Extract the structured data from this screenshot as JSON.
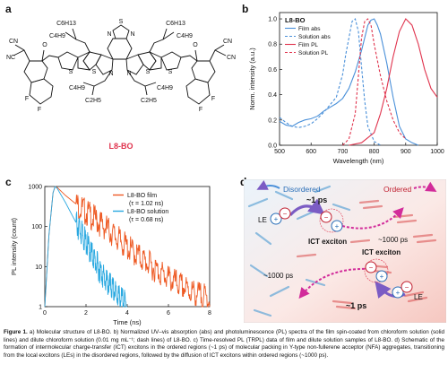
{
  "panels": {
    "a": {
      "label": "a",
      "molecule_name": "L8-BO",
      "atoms": {
        "c6h13": "C6H13",
        "c4h9": "C4H9",
        "c2h5": "C2H5",
        "n": "N",
        "s": "S",
        "o": "O",
        "f": "F",
        "cn": "CN",
        "nc": "NC"
      }
    },
    "b": {
      "label": "b"
    },
    "c": {
      "label": "c"
    },
    "d": {
      "label": "d",
      "texts": {
        "disordered": "Disordered",
        "ordered": "Ordered",
        "ps1_top": "~1 ps",
        "ps1000_top": "~1000 ps",
        "ict_left": "ICT exciton",
        "ict_right": "ICT exciton",
        "ps1000_bottom": "~1000 ps",
        "ps1_bottom": "~1 ps",
        "le_top": "LE",
        "le_bottom": "LE"
      }
    }
  },
  "chart_data": [
    {
      "type": "line",
      "panel": "b",
      "title": "L8-BO",
      "xlabel": "Wavelength (nm)",
      "ylabel": "Norm. intensity (a.u.)",
      "xlim": [
        500,
        1000
      ],
      "ylim": [
        0.0,
        1.05
      ],
      "xticks": [
        "500",
        "600",
        "700",
        "800",
        "900",
        "1000"
      ],
      "yticks": [
        "0.0",
        "0.2",
        "0.4",
        "0.6",
        "0.8",
        "1.0"
      ],
      "legend_position": "top-left",
      "colors": {
        "abs": "#4a90d9",
        "pl": "#e0334d"
      },
      "series": [
        {
          "name": "Film abs",
          "style": "solid",
          "color": "#4a90d9",
          "x": [
            500,
            520,
            540,
            560,
            580,
            600,
            620,
            640,
            660,
            680,
            700,
            720,
            740,
            760,
            780,
            790,
            800,
            810,
            820,
            840,
            860,
            880,
            900,
            920,
            940
          ],
          "y": [
            0.19,
            0.16,
            0.15,
            0.18,
            0.2,
            0.21,
            0.23,
            0.27,
            0.3,
            0.33,
            0.37,
            0.45,
            0.58,
            0.75,
            0.95,
            0.99,
            1.0,
            0.95,
            0.88,
            0.65,
            0.38,
            0.15,
            0.05,
            0.02,
            0.0
          ]
        },
        {
          "name": "Solution abs",
          "style": "dashed",
          "color": "#4a90d9",
          "x": [
            500,
            520,
            540,
            560,
            580,
            600,
            620,
            640,
            660,
            680,
            700,
            710,
            720,
            730,
            740,
            750,
            760,
            770,
            780,
            800,
            820
          ],
          "y": [
            0.22,
            0.18,
            0.15,
            0.14,
            0.15,
            0.17,
            0.21,
            0.26,
            0.32,
            0.38,
            0.56,
            0.72,
            0.85,
            0.98,
            1.0,
            0.9,
            0.62,
            0.35,
            0.15,
            0.03,
            0.0
          ]
        },
        {
          "name": "Film PL",
          "style": "solid",
          "color": "#e0334d",
          "x": [
            720,
            760,
            800,
            820,
            840,
            860,
            880,
            900,
            920,
            940,
            960,
            980,
            1000
          ],
          "y": [
            0.0,
            0.02,
            0.1,
            0.25,
            0.45,
            0.7,
            0.9,
            1.0,
            0.95,
            0.8,
            0.6,
            0.45,
            0.38
          ]
        },
        {
          "name": "Solution PL",
          "style": "dashed",
          "color": "#e0334d",
          "x": [
            700,
            720,
            740,
            750,
            760,
            770,
            780,
            790,
            800,
            820,
            840,
            860,
            880,
            900
          ],
          "y": [
            0.0,
            0.05,
            0.25,
            0.55,
            0.85,
            0.98,
            1.0,
            0.95,
            0.8,
            0.55,
            0.35,
            0.2,
            0.1,
            0.05
          ]
        }
      ]
    },
    {
      "type": "line",
      "panel": "c",
      "xlabel": "Time (ns)",
      "ylabel": "PL intensity (count)",
      "xlim": [
        0,
        8
      ],
      "ylim_log": [
        1,
        1000
      ],
      "yscale": "log",
      "xticks": [
        "0",
        "2",
        "4",
        "6",
        "8"
      ],
      "yticks": [
        "1",
        "10",
        "100",
        "1000"
      ],
      "legend_position": "top-right",
      "series": [
        {
          "name": "L8-BO film",
          "tau_label": "(τ = 1.02 ns)",
          "color": "#ee5a24",
          "x": [
            0.0,
            0.2,
            0.4,
            0.5,
            0.6,
            1.0,
            2.0,
            3.0,
            4.0,
            5.0,
            6.0,
            7.0,
            8.0
          ],
          "y": [
            1,
            60,
            700,
            1000,
            950,
            600,
            230,
            90,
            30,
            12,
            5,
            2.5,
            1.5
          ]
        },
        {
          "name": "L8-BO solution",
          "tau_label": "(τ = 0.68 ns)",
          "color": "#29a8e0",
          "x": [
            0.0,
            0.2,
            0.4,
            0.5,
            0.6,
            1.0,
            1.5,
            2.0,
            2.5,
            3.0,
            3.5,
            4.0
          ],
          "y": [
            1,
            60,
            700,
            1000,
            900,
            400,
            130,
            40,
            12,
            4,
            2,
            1
          ]
        }
      ]
    }
  ],
  "caption": {
    "lead": "Figure 1.",
    "text": " a) Molecular structure of L8-BO. b) Normalized UV–vis absorption (abs) and photoluminescence (PL) spectra of the film spin-coated from chloroform solution (solid lines) and dilute chloroform solution (0.01 mg mL⁻¹; dash lines) of L8-BO. c) Time-resolved PL (TRPL) data of film and dilute solution samples of L8-BO. d) Schematic of the formation of intermolecular charge-transfer (ICT) excitons in the ordered regions (~1 ps) of molecular packing in Y-type non-fullerene acceptor (NFA) aggregates, transitioning from the local excitons (LEs) in the disordered regions, followed by the diffusion of ICT excitons within ordered regions (~1000 ps)."
  }
}
